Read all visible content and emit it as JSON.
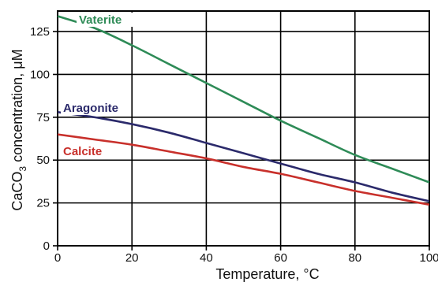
{
  "chart_data": {
    "type": "line",
    "title": "",
    "xlabel": "Temperature, °C",
    "ylabel_parts": {
      "a": "CaCO",
      "sub": "3",
      "b": " concentration, μM"
    },
    "xlim": [
      0,
      100
    ],
    "ylim": [
      0,
      137
    ],
    "x_ticks": [
      "0",
      "20",
      "40",
      "60",
      "80",
      "100"
    ],
    "y_ticks": [
      "0",
      "25",
      "50",
      "75",
      "100",
      "125"
    ],
    "grid": true,
    "series": [
      {
        "name": "Vaterite",
        "color": "#2e8b57",
        "x": [
          0,
          10,
          20,
          30,
          40,
          50,
          60,
          70,
          80,
          90,
          100
        ],
        "y": [
          134,
          127,
          117,
          106,
          95,
          84,
          73,
          63,
          53,
          45,
          37
        ]
      },
      {
        "name": "Aragonite",
        "color": "#2b2a6b",
        "x": [
          0,
          10,
          20,
          30,
          40,
          50,
          60,
          70,
          80,
          90,
          100
        ],
        "y": [
          78,
          75,
          71,
          66,
          60,
          54,
          48,
          42,
          37,
          31,
          26
        ]
      },
      {
        "name": "Calcite",
        "color": "#c8302b",
        "x": [
          0,
          10,
          20,
          30,
          40,
          50,
          60,
          70,
          80,
          90,
          100
        ],
        "y": [
          65,
          62,
          59,
          55,
          51,
          46,
          42,
          37,
          32,
          28,
          24
        ]
      }
    ]
  }
}
